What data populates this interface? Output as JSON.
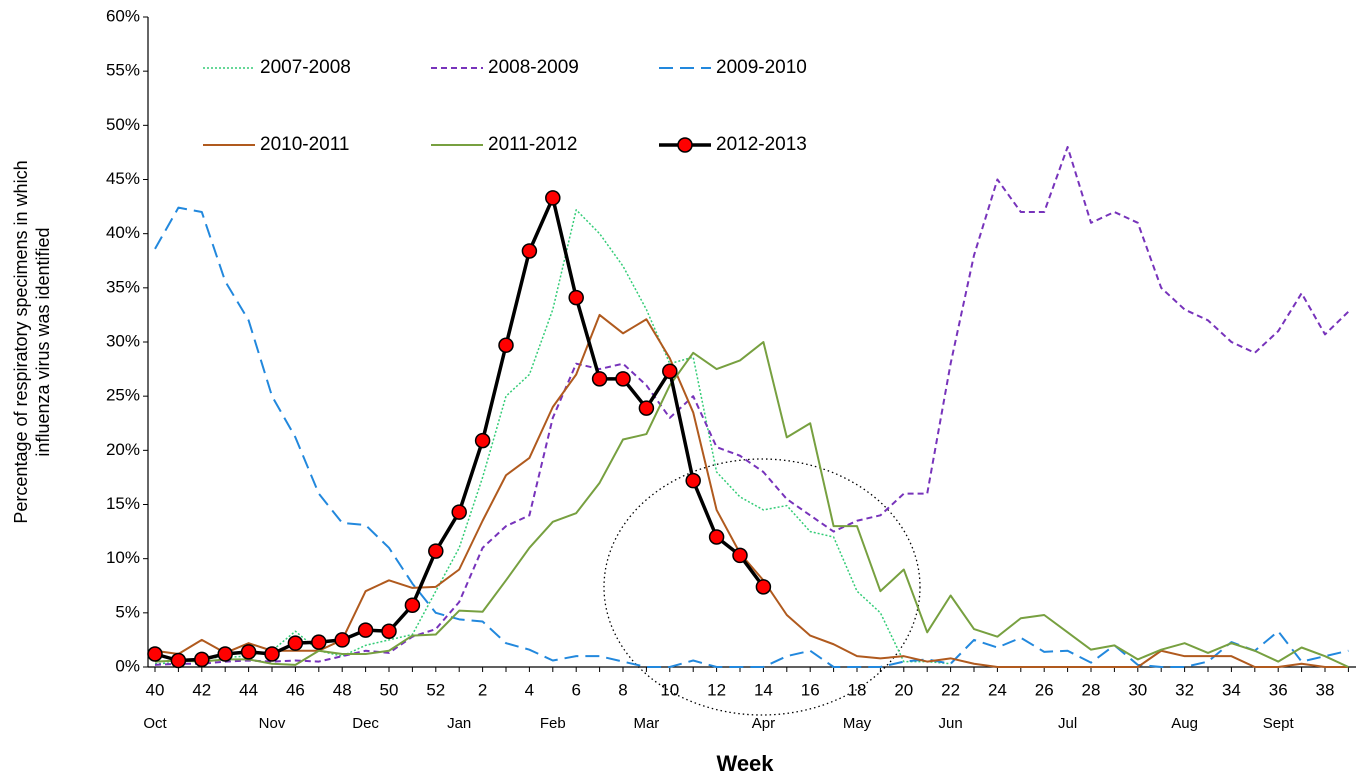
{
  "chart_data": {
    "type": "line",
    "xlabel": "Week",
    "ylabel": [
      "Percentage of respiratory specimens in which",
      "influenza virus was identified"
    ],
    "categories": [
      "40",
      null,
      "42",
      null,
      "44",
      null,
      "46",
      null,
      "48",
      null,
      "50",
      null,
      "52",
      null,
      "2",
      null,
      "4",
      null,
      "6",
      null,
      "8",
      null,
      "10",
      null,
      "12",
      null,
      "14",
      null,
      "16",
      null,
      "18",
      null,
      "20",
      null,
      "22",
      null,
      "24",
      null,
      "26",
      null,
      "28",
      null,
      "30",
      null,
      "32",
      null,
      "34",
      null,
      "36",
      null,
      "38",
      null
    ],
    "month_categories": [
      "Oct",
      null,
      null,
      null,
      null,
      "Nov",
      null,
      null,
      null,
      "Dec",
      null,
      null,
      null,
      "Jan",
      null,
      null,
      null,
      "Feb",
      null,
      null,
      null,
      "Mar",
      null,
      null,
      null,
      null,
      "Apr",
      null,
      null,
      null,
      "May",
      null,
      null,
      null,
      "Jun",
      null,
      null,
      null,
      null,
      "Jul",
      null,
      null,
      null,
      null,
      "Aug",
      null,
      null,
      null,
      "Sept",
      null,
      null,
      null
    ],
    "ylim": [
      0,
      60
    ],
    "yticks": [
      {
        "value": 0,
        "label": "0%"
      },
      {
        "value": 5,
        "label": "5%"
      },
      {
        "value": 10,
        "label": "10%"
      },
      {
        "value": 15,
        "label": "15%"
      },
      {
        "value": 20,
        "label": "20%"
      },
      {
        "value": 25,
        "label": "25%"
      },
      {
        "value": 30,
        "label": "30%"
      },
      {
        "value": 35,
        "label": "35%"
      },
      {
        "value": 40,
        "label": "40%"
      },
      {
        "value": 45,
        "label": "45%"
      },
      {
        "value": 50,
        "label": "50%"
      },
      {
        "value": 55,
        "label": "55%"
      },
      {
        "value": 60,
        "label": "60%"
      }
    ],
    "grid": false,
    "legend": "top-left",
    "series": [
      {
        "name": "2007-2008",
        "color": "#33cc77",
        "dash": "dotted",
        "width": 1.5,
        "marker": false,
        "values": [
          0.3,
          0.4,
          0.8,
          0.9,
          1.0,
          1.5,
          3.3,
          1.5,
          1.0,
          2.0,
          2.5,
          3.0,
          7.0,
          11.0,
          17.5,
          25,
          27,
          33,
          42.2,
          40,
          37,
          33,
          28,
          28.6,
          18,
          15.7,
          14.5,
          14.9,
          12.5,
          12,
          7,
          5,
          0.5,
          0.5,
          0.3,
          null,
          null,
          null,
          null,
          null,
          null,
          null,
          null,
          null,
          null,
          null,
          null,
          null,
          null,
          null,
          null,
          null
        ]
      },
      {
        "name": "2008-2009",
        "color": "#7733bb",
        "dash": "dashed",
        "width": 2,
        "marker": false,
        "values": [
          0.2,
          0.3,
          0.3,
          0.5,
          0.6,
          0.5,
          0.6,
          0.5,
          1.0,
          1.5,
          1.3,
          2.8,
          3.5,
          6,
          11,
          13,
          14,
          23,
          28,
          27.5,
          28,
          26,
          23,
          25,
          20.3,
          19.5,
          18,
          15.5,
          14,
          12.5,
          13.5,
          14,
          16,
          16,
          28,
          38,
          45,
          42,
          42,
          48,
          41,
          42,
          41,
          35,
          33,
          32,
          30,
          29,
          31,
          34.5,
          30.7,
          32.8
        ]
      },
      {
        "name": "2009-2010",
        "color": "#2288dd",
        "dash": "longdash",
        "width": 2,
        "marker": false,
        "values": [
          38.6,
          42.4,
          42,
          35.6,
          32,
          25,
          21.2,
          16,
          13.3,
          13.1,
          11,
          7.7,
          5,
          4.4,
          4.2,
          2.2,
          1.6,
          0.6,
          1,
          1,
          0.5,
          0,
          0,
          0.6,
          0,
          0,
          0,
          1,
          1.5,
          0,
          0,
          0,
          0.5,
          0.7,
          0.3,
          2.5,
          1.8,
          2.7,
          1.4,
          1.5,
          0.4,
          2,
          0.2,
          0,
          0,
          0.5,
          2.3,
          1.5,
          3.3,
          0.5,
          1,
          1.5
        ]
      },
      {
        "name": "2010-2011",
        "color": "#b05a1e",
        "dash": "solid",
        "width": 2,
        "marker": false,
        "values": [
          1.5,
          1.2,
          2.5,
          1.3,
          2.2,
          1.5,
          1.5,
          1.5,
          2.5,
          7,
          8,
          7.3,
          7.4,
          9,
          13.5,
          17.7,
          19.3,
          24,
          27,
          32.5,
          30.8,
          32.1,
          28.5,
          23.5,
          14.5,
          10.5,
          8,
          4.8,
          2.9,
          2.1,
          1,
          0.8,
          1,
          0.5,
          0.8,
          0.3,
          0,
          0,
          0,
          0,
          0,
          0,
          0,
          1.5,
          1,
          1,
          1,
          0,
          0,
          0.3,
          0,
          0
        ]
      },
      {
        "name": "2011-2012",
        "color": "#77a040",
        "dash": "solid",
        "width": 2,
        "marker": false,
        "values": [
          0.5,
          0.6,
          0.5,
          0.7,
          0.7,
          0.3,
          0.2,
          1.5,
          1.2,
          1.2,
          1.5,
          2.9,
          3,
          5.2,
          5.1,
          8,
          11,
          13.4,
          14.2,
          17,
          21,
          21.5,
          26,
          29,
          27.5,
          28.3,
          30,
          21.2,
          22.5,
          13,
          13,
          7,
          9,
          3.2,
          6.6,
          3.5,
          2.8,
          4.5,
          4.8,
          3.2,
          1.6,
          2,
          0.7,
          1.6,
          2.2,
          1.3,
          2.2,
          1.5,
          0.5,
          1.8,
          1,
          0
        ]
      },
      {
        "name": "2012-2013",
        "color": "#000000",
        "marker_color": "#ff0000",
        "dash": "solid",
        "width": 3.5,
        "marker": true,
        "values": [
          1.2,
          0.6,
          0.7,
          1.2,
          1.4,
          1.2,
          2.2,
          2.3,
          2.5,
          3.4,
          3.3,
          5.7,
          10.7,
          14.3,
          20.9,
          29.7,
          38.4,
          43.3,
          34.1,
          26.6,
          26.6,
          23.9,
          27.3,
          17.2,
          12.0,
          10.3,
          7.4,
          null,
          null,
          null,
          null,
          null,
          null,
          null,
          null,
          null,
          null,
          null,
          null,
          null,
          null,
          null,
          null,
          null,
          null,
          null,
          null,
          null,
          null,
          null,
          null,
          null
        ]
      }
    ]
  }
}
